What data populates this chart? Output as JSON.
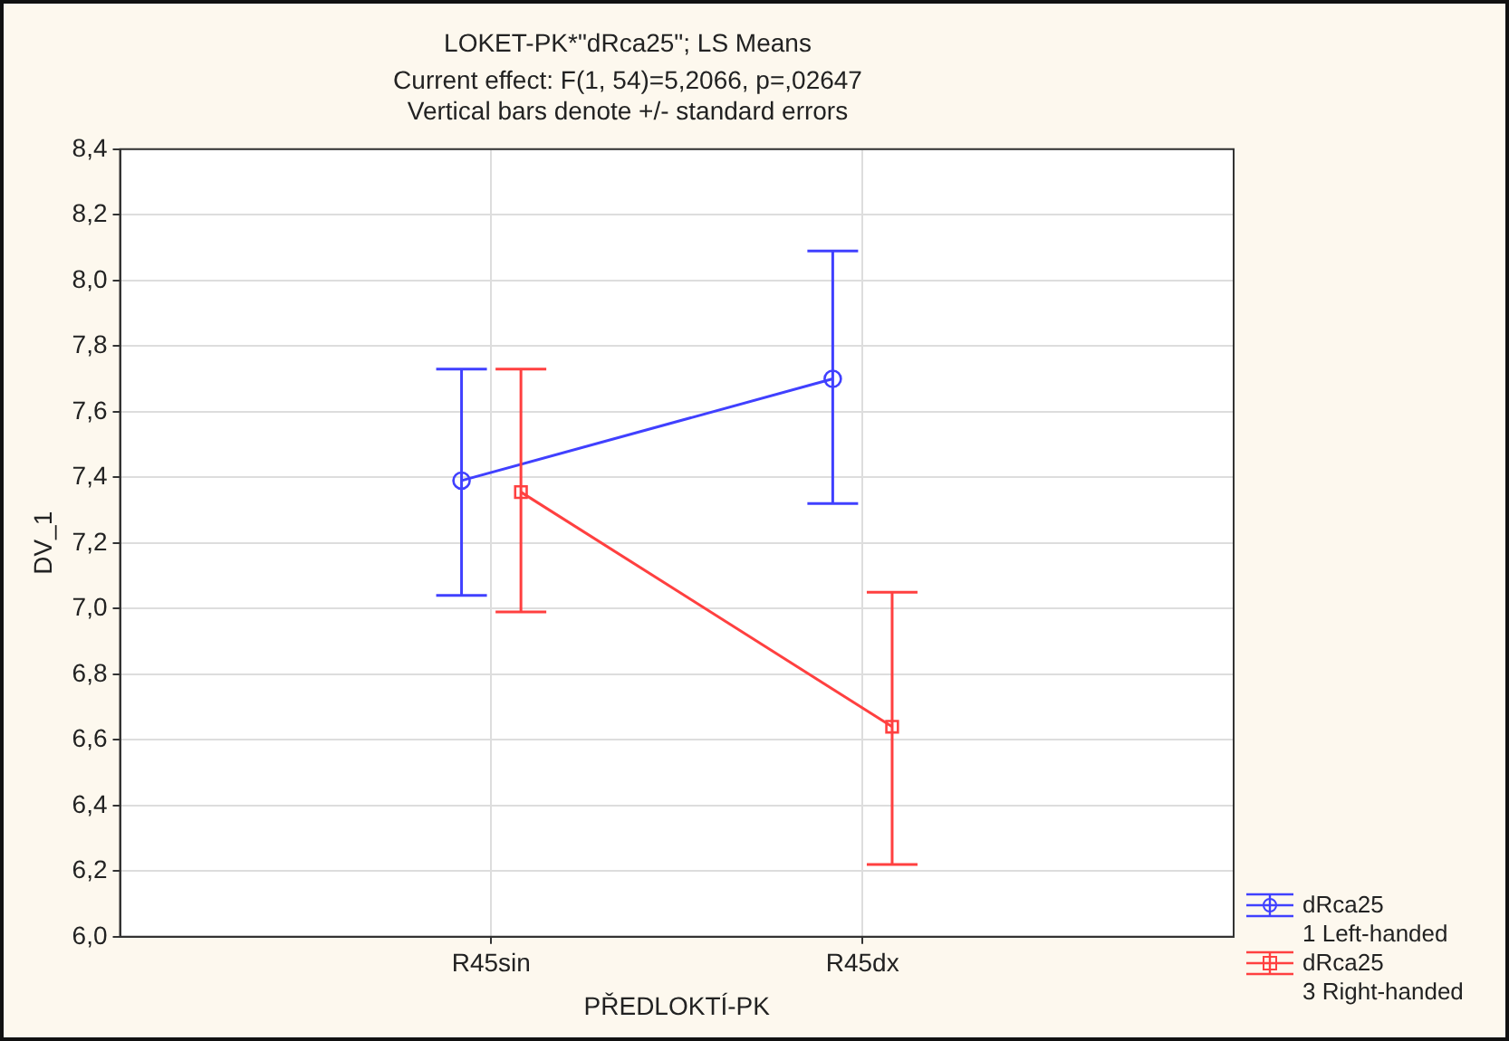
{
  "chart_data": {
    "type": "line",
    "title": "LOKET-PK*\"dRca25\"; LS Means",
    "subtitle": "Current effect: F(1, 54)=5,2066, p=,02647",
    "annotations": [
      "Vertical bars denote +/- standard errors"
    ],
    "xlabel": "PŘEDLOKTÍ-PK",
    "ylabel": "DV_1",
    "categories": [
      "R45sin",
      "R45dx"
    ],
    "series": [
      {
        "name": "dRca25\n1 Left-handed",
        "color": "#4040ff",
        "marker": "circle",
        "values": [
          7.39,
          7.7
        ],
        "errors": [
          [
            7.04,
            7.73
          ],
          [
            7.32,
            8.09
          ]
        ]
      },
      {
        "name": "dRca25\n3 Right-handed",
        "color": "#ff4040",
        "marker": "square",
        "values": [
          7.355,
          6.64
        ],
        "errors": [
          [
            6.99,
            7.73
          ],
          [
            6.22,
            7.05
          ]
        ]
      }
    ],
    "ylim": [
      6.0,
      8.4
    ],
    "yticks": [
      {
        "value": 6.0,
        "label": "6,0"
      },
      {
        "value": 6.2,
        "label": "6,2"
      },
      {
        "value": 6.4,
        "label": "6,4"
      },
      {
        "value": 6.6,
        "label": "6,6"
      },
      {
        "value": 6.8,
        "label": "6,8"
      },
      {
        "value": 7.0,
        "label": "7,0"
      },
      {
        "value": 7.2,
        "label": "7,2"
      },
      {
        "value": 7.4,
        "label": "7,4"
      },
      {
        "value": 7.6,
        "label": "7,6"
      },
      {
        "value": 7.8,
        "label": "7,8"
      },
      {
        "value": 8.0,
        "label": "8,0"
      },
      {
        "value": 8.2,
        "label": "8,2"
      },
      {
        "value": 8.4,
        "label": "8,4"
      }
    ],
    "grid": true,
    "legend": "bottom right",
    "line_style": "solid"
  }
}
